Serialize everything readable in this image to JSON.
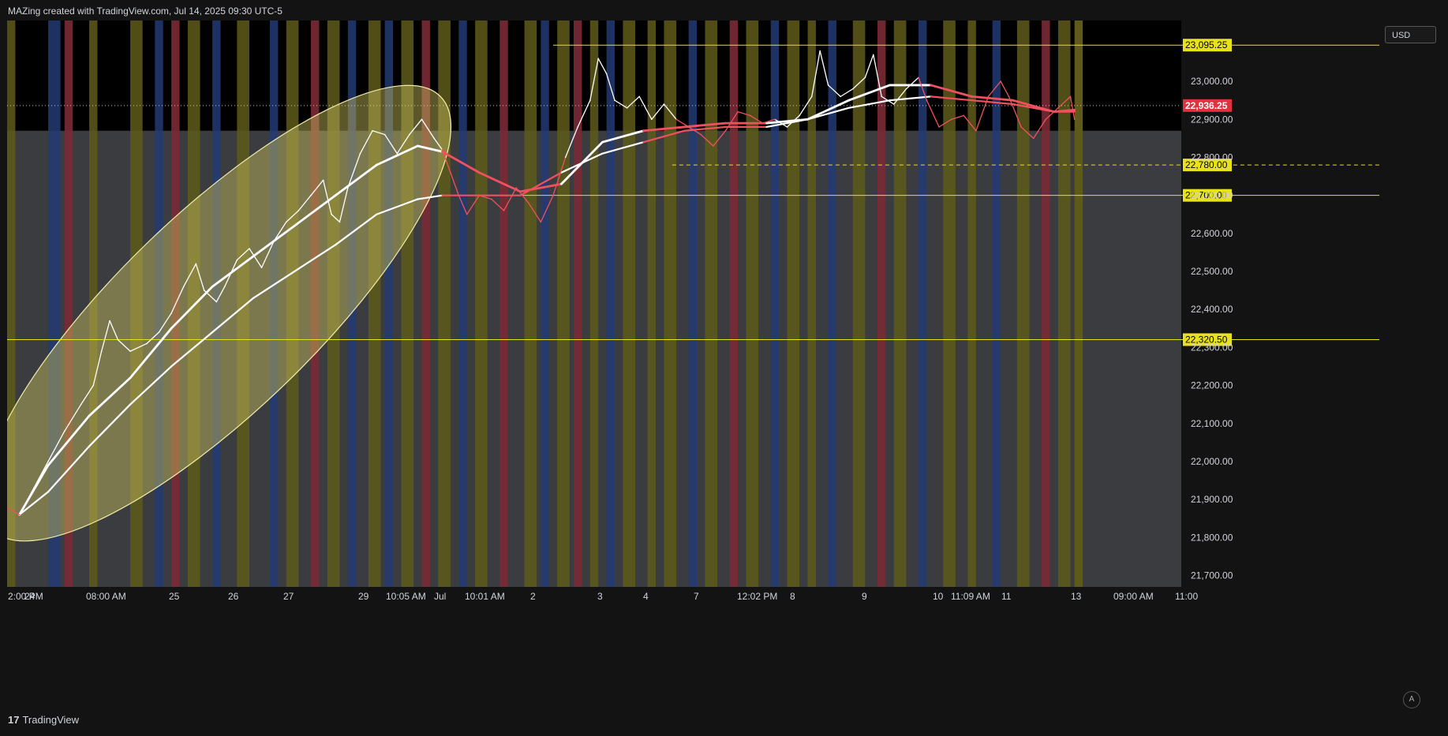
{
  "header": {
    "title": "MAZing created with TradingView.com, Jul 14, 2025 09:30 UTC-5"
  },
  "currency": "USD",
  "footer": {
    "brand": "TradingView",
    "logo_glyph": "17"
  },
  "auto_button": "A",
  "colors": {
    "background": "#000000",
    "grey_band": "#3b3c40",
    "yellow_band": "#5e5a1a",
    "blue_band": "#233a74",
    "red_line": "#7a2a35",
    "price_white": "#ffffff",
    "price_red": "#f0515f",
    "level_line": "#e8e21c",
    "ellipse_fill": "#c9c260",
    "last_price_bg": "#e0313f"
  },
  "chart_data": {
    "type": "line",
    "instrument_currency": "USD",
    "y_ticks": [
      23000,
      22900,
      22800,
      22700,
      22600,
      22500,
      22400,
      22300,
      22200,
      22100,
      22000,
      21900,
      21800,
      21700
    ],
    "y_tick_labels": [
      "23,000.00",
      "22,900.00",
      "22,800.00",
      "22,700.00",
      "22,600.00",
      "22,500.00",
      "22,400.00",
      "22,300.00",
      "22,200.00",
      "22,100.00",
      "22,000.00",
      "21,900.00",
      "21,800.00",
      "21,700.00"
    ],
    "ylim": [
      21670,
      23160
    ],
    "x_tick_labels": [
      "2:00 PM",
      "24",
      "08:00 AM",
      "25",
      "26",
      "27",
      "29",
      "10:05 AM",
      "Jul",
      "10:01 AM",
      "2",
      "3",
      "4",
      "7",
      "12:02 PM",
      "8",
      "9",
      "10",
      "11:09 AM",
      "11",
      "13",
      "09:00 AM",
      "11:00"
    ],
    "levels": [
      {
        "value": 23095.25,
        "label": "23,095.25",
        "style": "solid"
      },
      {
        "value": 22780.0,
        "label": "22,780.00",
        "style": "dashed"
      },
      {
        "value": 22700.0,
        "label": "22,700.00",
        "style": "solid"
      },
      {
        "value": 22320.5,
        "label": "22,320.50",
        "style": "solid"
      }
    ],
    "last_price": {
      "value": 22936.25,
      "label": "22,936.25"
    },
    "price_series": {
      "name": "",
      "points": [
        [
          0,
          21880
        ],
        [
          3,
          21860
        ],
        [
          6,
          21920
        ],
        [
          10,
          22000
        ],
        [
          14,
          22080
        ],
        [
          18,
          22150
        ],
        [
          21,
          22200
        ],
        [
          23,
          22290
        ],
        [
          25,
          22370
        ],
        [
          27,
          22320
        ],
        [
          30,
          22290
        ],
        [
          34,
          22310
        ],
        [
          37,
          22340
        ],
        [
          40,
          22390
        ],
        [
          43,
          22460
        ],
        [
          46,
          22520
        ],
        [
          48,
          22450
        ],
        [
          51,
          22420
        ],
        [
          53,
          22460
        ],
        [
          56,
          22530
        ],
        [
          59,
          22560
        ],
        [
          62,
          22510
        ],
        [
          65,
          22580
        ],
        [
          68,
          22630
        ],
        [
          71,
          22660
        ],
        [
          74,
          22700
        ],
        [
          77,
          22740
        ],
        [
          79,
          22650
        ],
        [
          81,
          22630
        ],
        [
          83,
          22720
        ],
        [
          86,
          22810
        ],
        [
          89,
          22870
        ],
        [
          92,
          22860
        ],
        [
          95,
          22810
        ],
        [
          98,
          22860
        ],
        [
          101,
          22900
        ],
        [
          104,
          22850
        ],
        [
          106,
          22820
        ],
        [
          108,
          22760
        ],
        [
          110,
          22700
        ],
        [
          112,
          22650
        ],
        [
          115,
          22700
        ],
        [
          118,
          22690
        ],
        [
          121,
          22660
        ],
        [
          124,
          22720
        ],
        [
          127,
          22680
        ],
        [
          130,
          22630
        ],
        [
          133,
          22700
        ],
        [
          136,
          22800
        ],
        [
          139,
          22880
        ],
        [
          142,
          22950
        ],
        [
          144,
          23060
        ],
        [
          146,
          23020
        ],
        [
          148,
          22950
        ],
        [
          151,
          22930
        ],
        [
          154,
          22960
        ],
        [
          157,
          22900
        ],
        [
          160,
          22940
        ],
        [
          163,
          22900
        ],
        [
          166,
          22880
        ],
        [
          169,
          22860
        ],
        [
          172,
          22830
        ],
        [
          175,
          22870
        ],
        [
          178,
          22920
        ],
        [
          181,
          22910
        ],
        [
          184,
          22890
        ],
        [
          187,
          22900
        ],
        [
          190,
          22880
        ],
        [
          193,
          22910
        ],
        [
          196,
          22960
        ],
        [
          198,
          23080
        ],
        [
          200,
          22990
        ],
        [
          203,
          22960
        ],
        [
          206,
          22980
        ],
        [
          209,
          23010
        ],
        [
          211,
          23070
        ],
        [
          213,
          22960
        ],
        [
          216,
          22940
        ],
        [
          219,
          22980
        ],
        [
          222,
          23010
        ],
        [
          224,
          22950
        ],
        [
          227,
          22880
        ],
        [
          230,
          22900
        ],
        [
          233,
          22910
        ],
        [
          236,
          22870
        ],
        [
          239,
          22960
        ],
        [
          242,
          23000
        ],
        [
          244,
          22960
        ],
        [
          247,
          22880
        ],
        [
          250,
          22850
        ],
        [
          253,
          22900
        ],
        [
          256,
          22930
        ],
        [
          259,
          22960
        ],
        [
          260,
          22900
        ]
      ],
      "red_segments": [
        [
          0,
          4
        ],
        [
          106,
          135
        ],
        [
          163,
          188
        ],
        [
          222,
          260
        ]
      ]
    },
    "ma_fast": [
      [
        3,
        21860
      ],
      [
        10,
        21990
      ],
      [
        20,
        22120
      ],
      [
        30,
        22220
      ],
      [
        40,
        22350
      ],
      [
        50,
        22460
      ],
      [
        60,
        22540
      ],
      [
        70,
        22620
      ],
      [
        80,
        22700
      ],
      [
        90,
        22780
      ],
      [
        100,
        22830
      ],
      [
        106,
        22815
      ],
      [
        115,
        22760
      ],
      [
        125,
        22710
      ],
      [
        135,
        22730
      ],
      [
        145,
        22840
      ],
      [
        155,
        22870
      ],
      [
        165,
        22880
      ],
      [
        175,
        22890
      ],
      [
        185,
        22890
      ],
      [
        195,
        22900
      ],
      [
        205,
        22950
      ],
      [
        215,
        22990
      ],
      [
        225,
        22990
      ],
      [
        235,
        22960
      ],
      [
        245,
        22950
      ],
      [
        255,
        22920
      ],
      [
        260,
        22925
      ]
    ],
    "ma_slow": [
      [
        3,
        21860
      ],
      [
        10,
        21920
      ],
      [
        20,
        22040
      ],
      [
        30,
        22150
      ],
      [
        40,
        22250
      ],
      [
        50,
        22340
      ],
      [
        60,
        22430
      ],
      [
        70,
        22500
      ],
      [
        80,
        22570
      ],
      [
        90,
        22650
      ],
      [
        100,
        22690
      ],
      [
        106,
        22700
      ],
      [
        115,
        22700
      ],
      [
        125,
        22700
      ],
      [
        135,
        22760
      ],
      [
        145,
        22810
      ],
      [
        155,
        22840
      ],
      [
        165,
        22870
      ],
      [
        175,
        22880
      ],
      [
        185,
        22880
      ],
      [
        195,
        22900
      ],
      [
        205,
        22930
      ],
      [
        215,
        22950
      ],
      [
        225,
        22960
      ],
      [
        235,
        22950
      ],
      [
        245,
        22940
      ],
      [
        255,
        22920
      ],
      [
        260,
        22920
      ]
    ],
    "ma_red_segments": [
      [
        106,
        130
      ],
      [
        155,
        180
      ],
      [
        222,
        260
      ]
    ]
  }
}
